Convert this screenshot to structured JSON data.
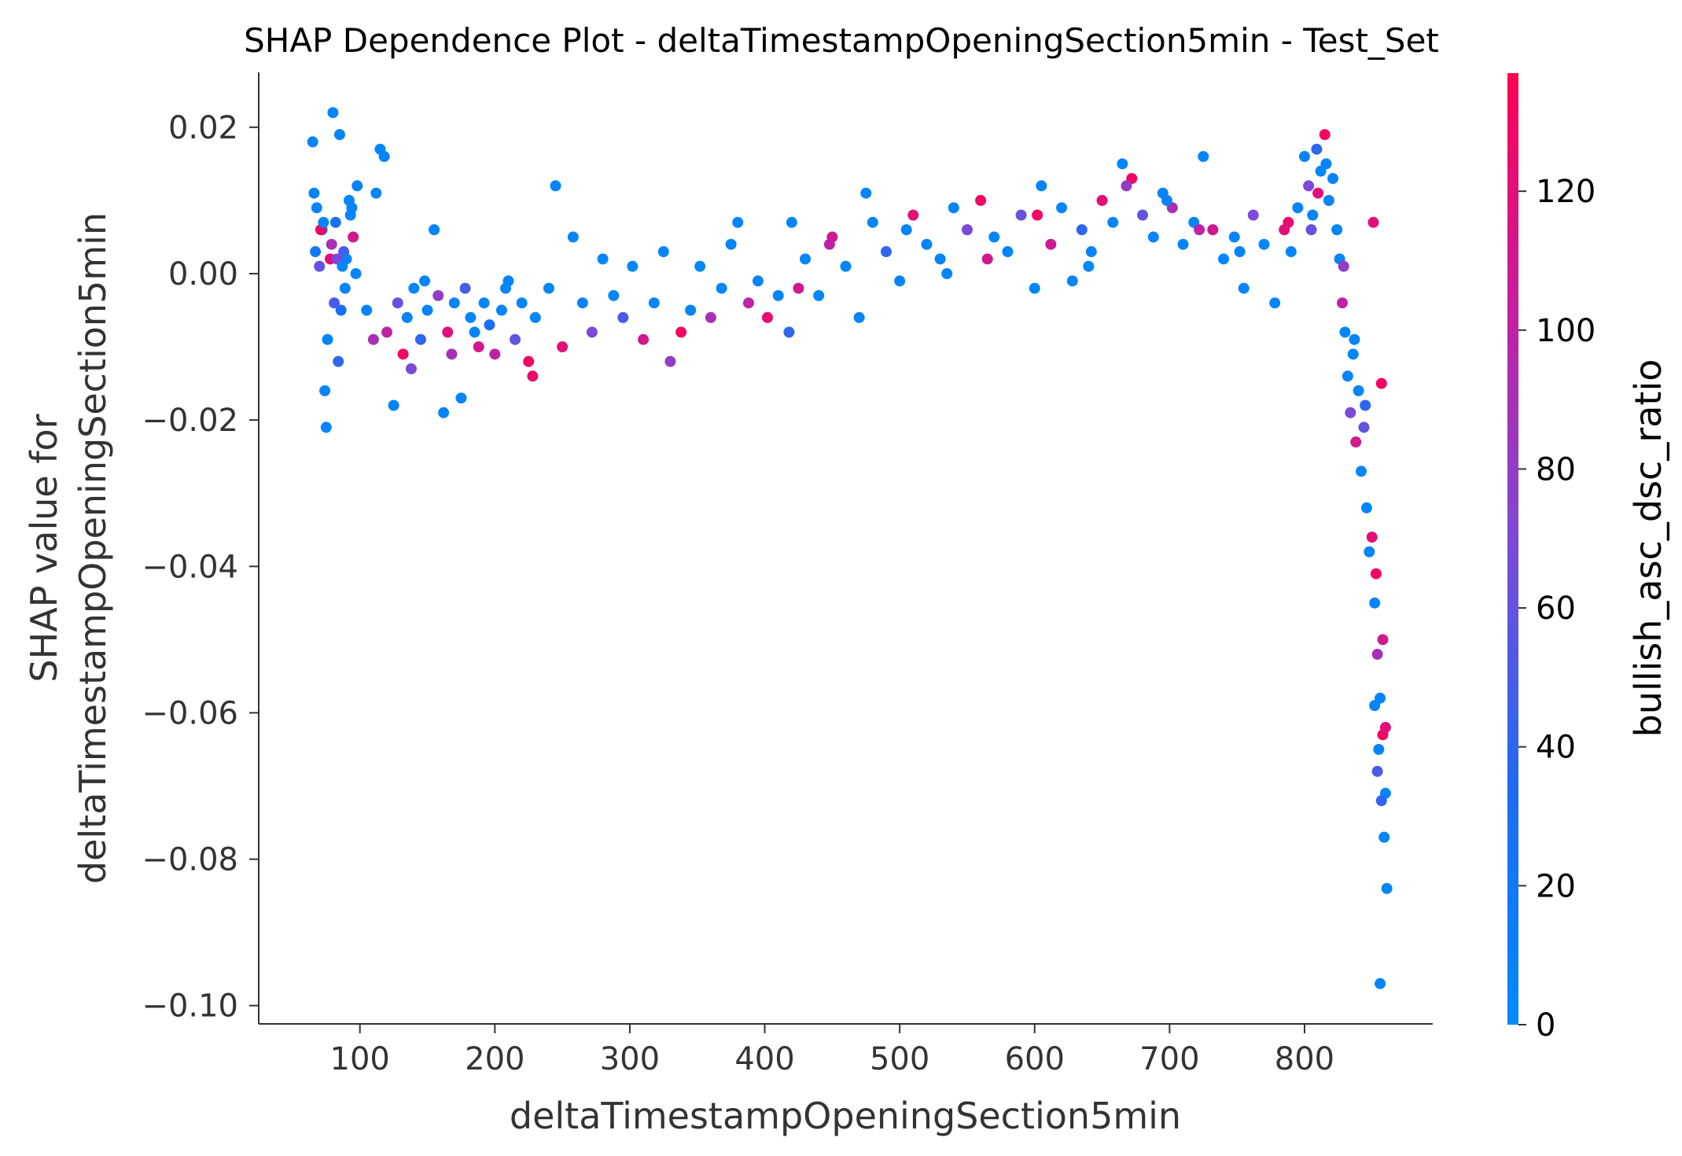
{
  "chart_data": {
    "type": "scatter",
    "title": "SHAP Dependence Plot - deltaTimestampOpeningSection5min - Test_Set",
    "xlabel": "deltaTimestampOpeningSection5min",
    "ylabel_lines": [
      "SHAP value for",
      "deltaTimestampOpeningSection5min"
    ],
    "xlim": [
      25,
      895
    ],
    "ylim": [
      -0.1025,
      0.0275
    ],
    "x_ticks": [
      100,
      200,
      300,
      400,
      500,
      600,
      700,
      800
    ],
    "x_tick_labels": [
      "100",
      "200",
      "300",
      "400",
      "500",
      "600",
      "700",
      "800"
    ],
    "y_ticks": [
      0.02,
      0.0,
      -0.02,
      -0.04,
      -0.06,
      -0.08,
      -0.1
    ],
    "y_tick_labels": [
      "0.02",
      "0.00",
      "−0.02",
      "−0.04",
      "−0.06",
      "−0.08",
      "−0.10"
    ],
    "grid": false,
    "colorbar": {
      "label": "bullish_asc_dsc_ratio",
      "range": [
        0,
        137
      ],
      "ticks": [
        0,
        20,
        40,
        60,
        80,
        100,
        120
      ],
      "tick_labels": [
        "0",
        "20",
        "40",
        "60",
        "80",
        "100",
        "120"
      ],
      "colormap": [
        "#008afb",
        "#1f6bf2",
        "#7a4bd8",
        "#c41fa1",
        "#ff0052"
      ]
    },
    "series": [
      {
        "x": [
          65,
          68,
          72,
          75,
          78,
          80,
          82,
          85,
          88,
          92,
          95,
          98,
          70,
          76,
          84,
          90,
          66,
          74,
          79,
          86,
          93,
          97,
          71,
          83,
          89,
          67,
          73,
          81,
          87,
          94
        ],
        "y": [
          0.018,
          0.009,
          0.006,
          -0.021,
          0.002,
          0.022,
          0.007,
          0.019,
          0.003,
          0.01,
          0.005,
          0.012,
          0.001,
          -0.009,
          -0.012,
          0.002,
          0.011,
          -0.016,
          0.004,
          -0.005,
          0.008,
          0.0,
          0.006,
          0.002,
          -0.002,
          0.003,
          0.007,
          -0.004,
          0.001,
          0.009
        ],
        "c": [
          5,
          4,
          10,
          5,
          120,
          6,
          30,
          5,
          50,
          4,
          110,
          6,
          60,
          5,
          40,
          8,
          7,
          5,
          90,
          30,
          6,
          4,
          130,
          70,
          5,
          20,
          6,
          50,
          4,
          6
        ]
      },
      {
        "x": [
          105,
          110,
          115,
          118,
          120,
          125,
          128,
          132,
          135,
          140,
          145,
          150,
          155,
          158,
          162,
          165,
          170,
          175,
          178,
          182,
          188,
          192,
          196,
          200,
          205,
          210,
          215,
          220,
          225,
          230,
          112,
          138,
          148,
          168,
          185,
          208,
          228
        ],
        "y": [
          -0.005,
          -0.009,
          0.017,
          0.016,
          -0.008,
          -0.018,
          -0.004,
          -0.011,
          -0.006,
          -0.002,
          -0.009,
          -0.005,
          0.006,
          -0.003,
          -0.019,
          -0.008,
          -0.004,
          -0.017,
          -0.002,
          -0.006,
          -0.01,
          -0.004,
          -0.007,
          -0.011,
          -0.005,
          -0.001,
          -0.009,
          -0.004,
          -0.012,
          -0.006,
          0.011,
          -0.013,
          -0.001,
          -0.011,
          -0.008,
          -0.002,
          -0.014
        ],
        "c": [
          6,
          90,
          5,
          6,
          100,
          5,
          60,
          130,
          8,
          5,
          40,
          7,
          5,
          80,
          6,
          120,
          5,
          6,
          50,
          5,
          110,
          6,
          30,
          100,
          5,
          7,
          60,
          5,
          130,
          6,
          5,
          70,
          5,
          90,
          6,
          5,
          125
        ]
      },
      {
        "x": [
          240,
          245,
          250,
          258,
          265,
          272,
          280,
          288,
          295,
          302,
          310,
          318,
          325,
          330,
          338,
          345,
          352,
          360,
          368,
          375,
          380,
          388,
          395,
          402,
          410,
          418,
          420,
          425
        ],
        "y": [
          -0.002,
          0.012,
          -0.01,
          0.005,
          -0.004,
          -0.008,
          0.002,
          -0.003,
          -0.006,
          0.001,
          -0.009,
          -0.004,
          0.003,
          -0.012,
          -0.008,
          -0.005,
          0.001,
          -0.006,
          -0.002,
          0.004,
          0.007,
          -0.004,
          -0.001,
          -0.006,
          -0.003,
          -0.008,
          0.007,
          -0.002
        ],
        "c": [
          6,
          5,
          120,
          5,
          6,
          70,
          5,
          6,
          50,
          5,
          110,
          6,
          5,
          80,
          130,
          6,
          5,
          90,
          5,
          6,
          5,
          100,
          6,
          125,
          5,
          40,
          6,
          110
        ]
      },
      {
        "x": [
          430,
          440,
          450,
          460,
          470,
          480,
          490,
          500,
          510,
          520,
          530,
          540,
          550,
          560,
          570,
          580,
          590,
          448,
          475,
          505,
          535,
          565
        ],
        "y": [
          0.002,
          -0.003,
          0.005,
          0.001,
          -0.006,
          0.007,
          0.003,
          -0.001,
          0.008,
          0.004,
          0.002,
          0.009,
          0.006,
          0.01,
          0.005,
          0.003,
          0.008,
          0.004,
          0.011,
          0.006,
          0.0,
          0.002
        ],
        "c": [
          5,
          6,
          110,
          5,
          6,
          5,
          40,
          6,
          120,
          5,
          6,
          5,
          70,
          130,
          6,
          5,
          60,
          100,
          5,
          6,
          5,
          110
        ]
      },
      {
        "x": [
          600,
          605,
          612,
          620,
          628,
          635,
          642,
          650,
          658,
          665,
          672,
          680,
          688,
          695,
          702,
          710,
          718,
          725,
          732,
          740,
          748,
          755,
          762,
          770,
          778,
          785,
          790,
          795,
          602,
          640,
          668,
          698,
          722,
          752,
          788
        ],
        "y": [
          -0.002,
          0.012,
          0.004,
          0.009,
          -0.001,
          0.006,
          0.003,
          0.01,
          0.007,
          0.015,
          0.013,
          0.008,
          0.005,
          0.011,
          0.009,
          0.004,
          0.007,
          0.016,
          0.006,
          0.002,
          0.005,
          -0.002,
          0.008,
          0.004,
          -0.004,
          0.006,
          0.003,
          0.009,
          0.008,
          0.001,
          0.012,
          0.01,
          0.006,
          0.003,
          0.007
        ],
        "c": [
          5,
          6,
          110,
          5,
          6,
          40,
          5,
          120,
          6,
          5,
          130,
          60,
          6,
          5,
          90,
          5,
          6,
          5,
          110,
          6,
          5,
          6,
          70,
          5,
          6,
          120,
          5,
          6,
          130,
          5,
          80,
          6,
          100,
          5,
          125
        ]
      },
      {
        "x": [
          800,
          803,
          806,
          809,
          812,
          815,
          818,
          821,
          810,
          805,
          816
        ],
        "y": [
          0.016,
          0.012,
          0.008,
          0.017,
          0.014,
          0.019,
          0.01,
          0.013,
          0.011,
          0.006,
          0.015
        ],
        "c": [
          6,
          70,
          5,
          40,
          6,
          130,
          5,
          6,
          120,
          60,
          5
        ]
      },
      {
        "x": [
          824,
          826,
          828,
          830,
          832,
          834,
          836,
          838,
          840,
          842,
          844,
          846,
          848,
          850,
          852,
          854,
          856,
          858,
          860,
          829,
          837,
          845,
          851,
          857
        ],
        "y": [
          0.006,
          0.002,
          -0.004,
          -0.008,
          -0.014,
          -0.019,
          -0.011,
          -0.023,
          -0.016,
          -0.027,
          -0.021,
          -0.032,
          -0.038,
          -0.036,
          -0.045,
          -0.052,
          -0.058,
          -0.063,
          -0.071,
          0.001,
          -0.009,
          -0.018,
          0.007,
          -0.015
        ],
        "c": [
          5,
          6,
          100,
          5,
          6,
          70,
          5,
          110,
          6,
          5,
          60,
          6,
          5,
          120,
          6,
          90,
          5,
          130,
          6,
          80,
          5,
          40,
          120,
          130
        ]
      },
      {
        "x": [
          852,
          855,
          857,
          859,
          861,
          856,
          860,
          853,
          858,
          854
        ],
        "y": [
          -0.059,
          -0.065,
          -0.072,
          -0.077,
          -0.084,
          -0.097,
          -0.062,
          -0.041,
          -0.05,
          -0.068
        ],
        "c": [
          5,
          6,
          40,
          5,
          6,
          5,
          120,
          130,
          110,
          50
        ]
      }
    ]
  }
}
